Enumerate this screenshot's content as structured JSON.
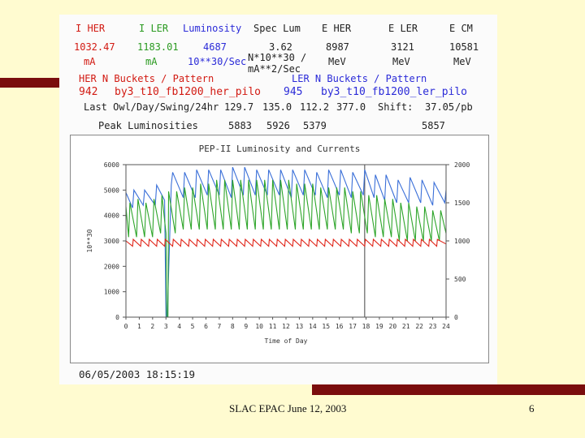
{
  "header": {
    "col_titles": [
      "I HER",
      "I LER",
      "Luminosity",
      "Spec Lum",
      "E HER",
      "E LER",
      "E CM"
    ],
    "values": [
      "1032.47",
      "1183.01",
      "4687",
      "3.62",
      "8987",
      "3121",
      "10581"
    ],
    "units": [
      "mA",
      "mA",
      "10**30/Sec",
      "N*10**30 /",
      "MeV",
      "MeV",
      "MeV"
    ],
    "spec_unit_line2": "mA**2/Sec",
    "her_buckets_label": "HER N Buckets / Pattern",
    "ler_buckets_label": "LER N Buckets / Pattern",
    "her_buckets": "942",
    "her_pattern": "by3_t10_fb1200_her_pilo",
    "ler_buckets": "945",
    "ler_pattern": "by3_t10_fb1200_ler_pilo",
    "last_label": "Last Owl/Day/Swing/24hr",
    "last_values": [
      "129.7",
      "135.0",
      "112.2",
      "377.0"
    ],
    "shift_label": "Shift:",
    "shift_value": "37.05",
    "shift_unit": "/pb",
    "peak_label": "Peak Luminosities",
    "peak_values": [
      "5883",
      "5926",
      "5379",
      "5857"
    ]
  },
  "date_stamp": "06/05/2003 18:15:19",
  "footer": {
    "text": "SLAC EPAC June 12, 2003",
    "page": "6"
  },
  "colors": {
    "luminosity": "#3a6fd8",
    "her": "#2ea52a",
    "ler": "#e02418",
    "frame": "#7a0d0d"
  },
  "chart_data": {
    "type": "line",
    "title": "PEP-II Luminosity and Currents",
    "xlabel": "Time of Day",
    "ylabel": "10**30",
    "xlim": [
      0,
      24
    ],
    "ylim": [
      0,
      6000
    ],
    "y2lim": [
      0,
      2000
    ],
    "x_ticks": [
      "0",
      "1",
      "2",
      "3",
      "4",
      "5",
      "6",
      "7",
      "8",
      "9",
      "10",
      "11",
      "12",
      "13",
      "14",
      "15",
      "16",
      "17",
      "18",
      "19",
      "20",
      "21",
      "22",
      "23",
      "24"
    ],
    "y_ticks": [
      "0",
      "1000",
      "2000",
      "3000",
      "4000",
      "5000",
      "6000"
    ],
    "y2_ticks": [
      "0",
      "500",
      "1000",
      "1500",
      "2000"
    ],
    "series": [
      {
        "axis": "left",
        "x": [
          0,
          0.5,
          0.6,
          1.3,
          1.4,
          2.2,
          2.3,
          2.9,
          3.0,
          3.1,
          3.4,
          3.5,
          4.3,
          4.4,
          5.2,
          5.3,
          6.1,
          6.2,
          7.0,
          7.1,
          7.9,
          8.0,
          8.8,
          8.9,
          9.7,
          9.8,
          10.6,
          10.7,
          11.5,
          11.6,
          12.4,
          12.5,
          13.3,
          13.4,
          14.2,
          14.3,
          15.1,
          15.2,
          16.0,
          16.1,
          16.9,
          17.0,
          17.8,
          17.9,
          18.6,
          18.7,
          19.4,
          19.5,
          20.3,
          20.4,
          21.2,
          21.3,
          22.1,
          22.2,
          23.0,
          23.1,
          23.9,
          24.0
        ],
        "y": [
          4900,
          4300,
          5000,
          4400,
          5000,
          4400,
          5200,
          4600,
          0,
          0,
          5200,
          5700,
          4700,
          5700,
          4700,
          5800,
          4800,
          5800,
          4800,
          5800,
          4700,
          5900,
          4800,
          5900,
          4800,
          5800,
          4800,
          5800,
          4800,
          5800,
          4700,
          5800,
          4800,
          5800,
          4800,
          5700,
          4700,
          5800,
          4800,
          5800,
          4700,
          5700,
          4800,
          5800,
          4700,
          5600,
          4600,
          5600,
          4500,
          5400,
          4500,
          5500,
          4500,
          5400,
          4400,
          5300,
          4500,
          5000
        ]
      },
      {
        "axis": "right",
        "x": [
          0,
          0.2,
          0.3,
          0.8,
          0.9,
          1.4,
          1.5,
          2.0,
          2.1,
          2.6,
          2.7,
          3.0,
          3.05,
          3.15,
          3.2,
          3.7,
          3.8,
          4.3,
          4.4,
          4.9,
          5.0,
          5.5,
          5.6,
          6.1,
          6.2,
          6.7,
          6.8,
          7.3,
          7.4,
          7.9,
          8.0,
          8.5,
          8.6,
          9.1,
          9.2,
          9.7,
          9.8,
          10.3,
          10.4,
          10.9,
          11.0,
          11.5,
          11.6,
          12.1,
          12.2,
          12.7,
          12.8,
          13.3,
          13.4,
          13.9,
          14.0,
          14.5,
          14.6,
          15.1,
          15.2,
          15.7,
          15.8,
          16.3,
          16.4,
          16.9,
          17.0,
          17.5,
          17.6,
          18.1,
          18.2,
          18.7,
          18.8,
          19.3,
          19.4,
          19.9,
          20.0,
          20.5,
          20.6,
          21.1,
          21.2,
          21.7,
          21.8,
          22.3,
          22.4,
          22.9,
          23.0,
          23.5,
          23.6,
          24.0
        ],
        "y": [
          1450,
          1050,
          1500,
          1050,
          1550,
          1050,
          1500,
          1050,
          1550,
          1100,
          1600,
          1100,
          0,
          0,
          1650,
          1100,
          1650,
          1150,
          1700,
          1150,
          1700,
          1150,
          1750,
          1150,
          1750,
          1150,
          1800,
          1150,
          1800,
          1150,
          1800,
          1150,
          1800,
          1150,
          1800,
          1150,
          1800,
          1150,
          1800,
          1150,
          1800,
          1150,
          1800,
          1150,
          1800,
          1150,
          1750,
          1150,
          1750,
          1150,
          1750,
          1150,
          1700,
          1150,
          1700,
          1150,
          1700,
          1150,
          1700,
          1100,
          1650,
          1100,
          1650,
          1100,
          1600,
          1050,
          1600,
          1050,
          1550,
          1050,
          1550,
          1000,
          1500,
          1000,
          1500,
          1000,
          1450,
          1000,
          1450,
          1000,
          1400,
          1000,
          1400,
          1100
        ]
      },
      {
        "axis": "right",
        "x": [
          0,
          0.5,
          0.55,
          1.1,
          1.15,
          1.7,
          1.75,
          2.3,
          2.35,
          2.9,
          2.95,
          3.5,
          3.55,
          4.1,
          4.15,
          4.7,
          4.75,
          5.3,
          5.35,
          5.9,
          5.95,
          6.5,
          6.55,
          7.1,
          7.15,
          7.7,
          7.75,
          8.3,
          8.35,
          8.9,
          8.95,
          9.5,
          9.55,
          10.1,
          10.15,
          10.7,
          10.75,
          11.3,
          11.35,
          11.9,
          11.95,
          12.5,
          12.55,
          13.1,
          13.15,
          13.7,
          13.75,
          14.3,
          14.35,
          14.9,
          14.95,
          15.5,
          15.55,
          16.1,
          16.15,
          16.7,
          16.75,
          17.3,
          17.35,
          17.9,
          17.95,
          18.5,
          18.55,
          19.1,
          19.15,
          19.7,
          19.75,
          20.3,
          20.35,
          20.9,
          20.95,
          21.5,
          21.55,
          22.1,
          22.15,
          22.7,
          22.75,
          23.3,
          23.35,
          24.0
        ],
        "y": [
          1000,
          930,
          1020,
          930,
          1020,
          930,
          1020,
          930,
          1020,
          930,
          1020,
          930,
          1020,
          930,
          1020,
          930,
          1020,
          930,
          1020,
          930,
          1020,
          930,
          1020,
          930,
          1020,
          930,
          1020,
          930,
          1020,
          930,
          1020,
          930,
          1020,
          930,
          1020,
          930,
          1020,
          930,
          1020,
          930,
          1020,
          930,
          1020,
          930,
          1020,
          930,
          1020,
          930,
          1020,
          930,
          1020,
          930,
          1020,
          930,
          1020,
          930,
          1020,
          930,
          1020,
          930,
          1020,
          930,
          1020,
          930,
          1020,
          930,
          1020,
          930,
          1020,
          930,
          1020,
          930,
          1020,
          930,
          1020,
          930,
          1020,
          930,
          1020,
          960
        ]
      }
    ]
  }
}
